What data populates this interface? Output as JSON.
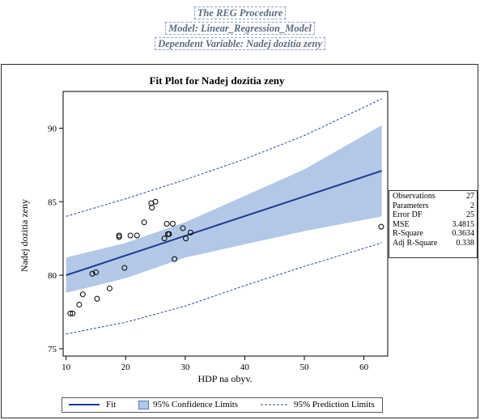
{
  "header": {
    "line1": "The REG Procedure",
    "line2": "Model: Linear_Regression_Model",
    "line3": "Dependent Variable: Nadej dozitia zeny"
  },
  "colors": {
    "fit_line": "#1c3a8c",
    "confidence_band": "#b3c8e6",
    "prediction_line": "#2b4a9c",
    "frame": "#2b2b2b"
  },
  "stats_table": [
    {
      "label": "Observations",
      "value": "27"
    },
    {
      "label": "Parameters",
      "value": "2"
    },
    {
      "label": "Error DF",
      "value": "25"
    },
    {
      "label": "MSE",
      "value": "3.4815"
    },
    {
      "label": "R-Square",
      "value": "0.3634"
    },
    {
      "label": "Adj R-Square",
      "value": "0.338"
    }
  ],
  "legend": {
    "fit": "Fit",
    "confidence": "95% Confidence Limits",
    "prediction": "95% Prediction Limits"
  },
  "chart_data": {
    "type": "scatter",
    "title": "Fit Plot for Nadej dozitia zeny",
    "xlabel": "HDP na obyv.",
    "ylabel": "Nadej dozitia zeny",
    "xlim": [
      9.5,
      64
    ],
    "ylim": [
      74.5,
      92.5
    ],
    "xticks": [
      10,
      20,
      30,
      40,
      50,
      60
    ],
    "yticks": [
      75,
      80,
      85,
      90
    ],
    "points": [
      [
        10.7,
        77.4
      ],
      [
        11.1,
        77.4
      ],
      [
        12.2,
        78.0
      ],
      [
        12.8,
        78.7
      ],
      [
        14.4,
        80.1
      ],
      [
        15.0,
        80.2
      ],
      [
        15.2,
        78.4
      ],
      [
        17.3,
        79.1
      ],
      [
        18.9,
        82.6
      ],
      [
        18.9,
        82.7
      ],
      [
        19.8,
        80.5
      ],
      [
        20.8,
        82.7
      ],
      [
        21.9,
        82.7
      ],
      [
        23.1,
        83.6
      ],
      [
        24.3,
        84.9
      ],
      [
        24.4,
        84.6
      ],
      [
        25.0,
        85.0
      ],
      [
        26.5,
        82.5
      ],
      [
        26.9,
        83.5
      ],
      [
        27.1,
        82.8
      ],
      [
        27.3,
        82.8
      ],
      [
        27.9,
        83.5
      ],
      [
        28.2,
        81.1
      ],
      [
        29.6,
        83.2
      ],
      [
        30.1,
        82.5
      ],
      [
        30.9,
        82.9
      ],
      [
        62.9,
        83.3
      ]
    ],
    "series": [
      {
        "name": "Fit",
        "x": [
          10,
          63
        ],
        "y": [
          80.0,
          87.1
        ]
      },
      {
        "name": "95% Confidence Limits",
        "x": [
          10,
          20,
          30,
          40,
          50,
          63
        ],
        "upper": [
          81.2,
          82.2,
          83.6,
          85.4,
          87.2,
          90.2
        ],
        "lower": [
          78.8,
          79.8,
          81.2,
          82.1,
          83.0,
          84.0
        ]
      },
      {
        "name": "95% Prediction Limits",
        "x": [
          10,
          20,
          30,
          40,
          50,
          63
        ],
        "upper": [
          84.0,
          85.2,
          86.5,
          87.9,
          89.5,
          92.0
        ],
        "lower": [
          76.0,
          76.8,
          77.9,
          79.3,
          80.6,
          82.2
        ]
      }
    ],
    "grid": false,
    "legend_position": "bottom"
  }
}
